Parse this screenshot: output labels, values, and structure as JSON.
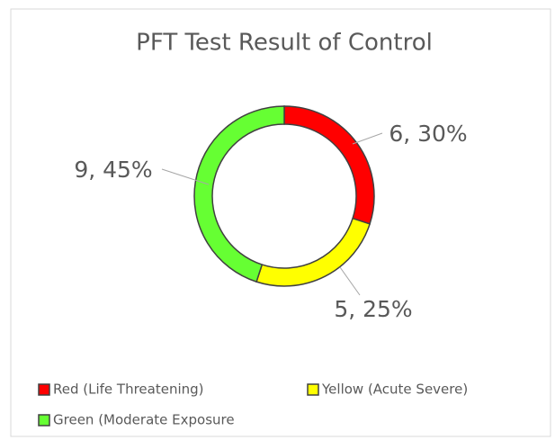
{
  "chart_data": {
    "type": "donut",
    "title": "PFT Test Result of Control",
    "categories": [
      "Red (Life Threatening)",
      "Yellow (Acute Severe)",
      "Green (Moderate Exposure"
    ],
    "values": [
      6,
      5,
      9
    ],
    "value_labels": [
      "6, 30%",
      "5, 25%",
      "9, 45%"
    ],
    "colors": [
      "#ff0000",
      "#ffff00",
      "#66ff33"
    ],
    "legend": "bottom"
  }
}
